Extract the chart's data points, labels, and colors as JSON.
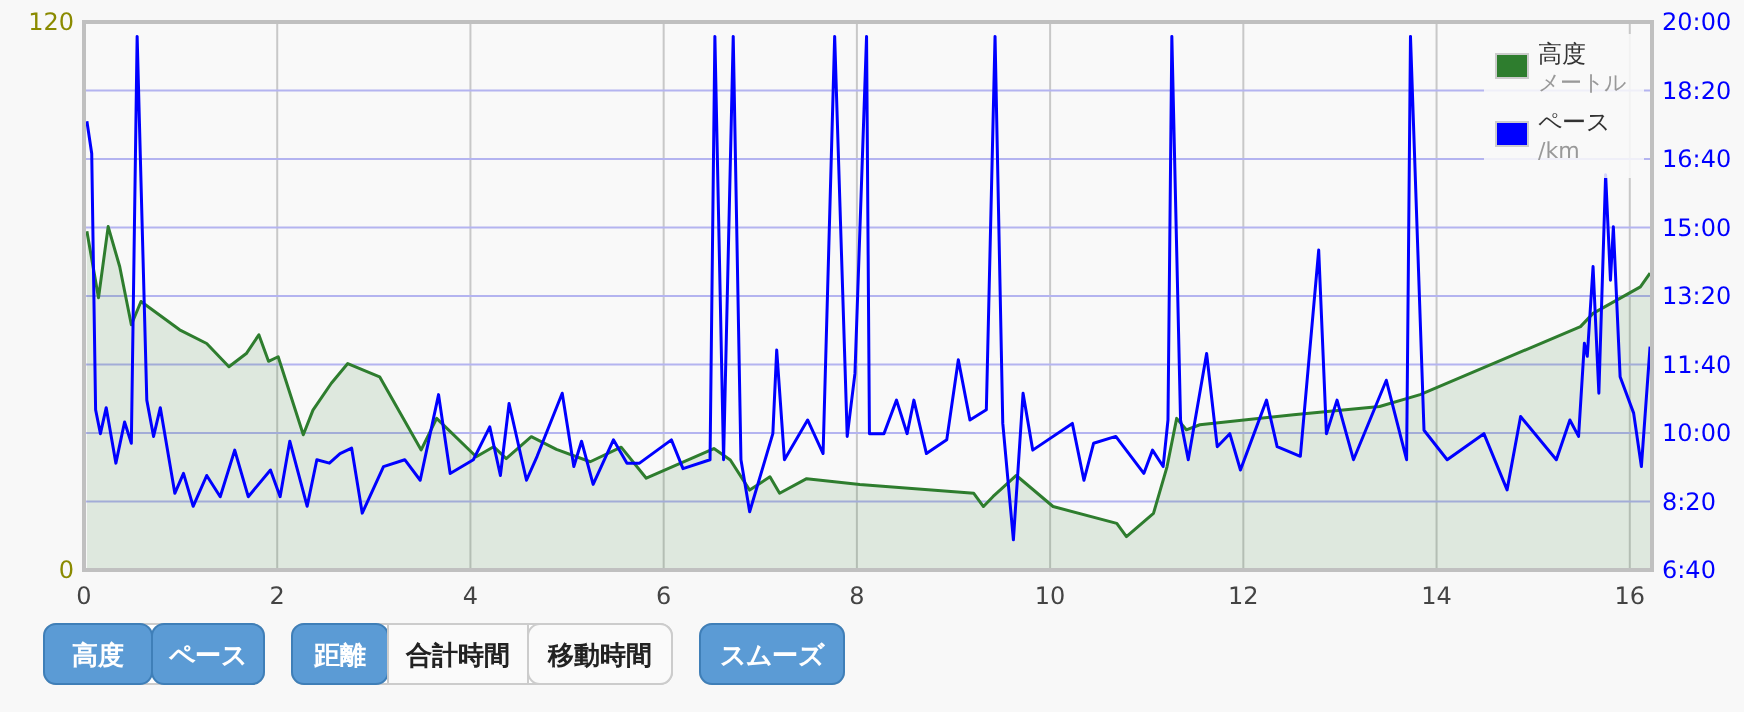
{
  "chart_data": {
    "type": "line",
    "xlim": [
      0,
      16.23
    ],
    "xticks": [
      0,
      2,
      4,
      6,
      8,
      10,
      12,
      14,
      16
    ],
    "ylim": [
      0,
      120
    ],
    "yticks": [
      0,
      120
    ],
    "y2lim": [
      400,
      1200
    ],
    "y2ticks": [
      {
        "value": 400,
        "label": "6:40"
      },
      {
        "value": 500,
        "label": "8:20"
      },
      {
        "value": 600,
        "label": "10:00"
      },
      {
        "value": 700,
        "label": "11:40"
      },
      {
        "value": 800,
        "label": "13:20"
      },
      {
        "value": 900,
        "label": "15:00"
      },
      {
        "value": 1000,
        "label": "16:40"
      },
      {
        "value": 1100,
        "label": "18:20"
      },
      {
        "value": 1200,
        "label": "20:00"
      }
    ],
    "grid": true,
    "legend": "top right",
    "annotations": [
      "高度",
      "ペース",
      "距離",
      "合計時間",
      "移動時間",
      "スムーズ",
      "メートル",
      "/km"
    ],
    "series": [
      {
        "name": "高度",
        "type": "area",
        "color": "#2e7d2e",
        "x": [
          0.03,
          0.15,
          0.25,
          0.37,
          0.49,
          0.59,
          0.99,
          1.27,
          1.5,
          1.68,
          1.81,
          1.91,
          2.01,
          2.27,
          2.37,
          2.56,
          2.73,
          3.06,
          3.49,
          3.65,
          4.06,
          4.24,
          4.37,
          4.63,
          4.89,
          5.24,
          5.56,
          5.82,
          6.52,
          6.69,
          6.89,
          7.1,
          7.2,
          7.48,
          8.03,
          9.21,
          9.31,
          9.41,
          9.65,
          10.03,
          10.69,
          10.79,
          11.07,
          11.21,
          11.31,
          11.41,
          11.55,
          12.52,
          13.41,
          13.83,
          15.49,
          15.62,
          16.11,
          16.21
        ],
        "values": [
          74.2,
          59.6,
          75.2,
          66.4,
          53.7,
          58.8,
          52.6,
          49.6,
          44.5,
          47.4,
          51.5,
          45.7,
          46.7,
          29.6,
          35,
          40.9,
          45.2,
          42.3,
          26.3,
          33.2,
          24.8,
          27,
          24.4,
          29.2,
          26.4,
          23.7,
          26.9,
          20.1,
          26.6,
          24.1,
          17.5,
          20.4,
          16.8,
          20,
          18.7,
          16.8,
          13.9,
          16.1,
          20.7,
          13.9,
          10.2,
          7.3,
          12.4,
          22.6,
          33.2,
          30.7,
          31.8,
          34,
          35.8,
          38.4,
          53.3,
          56.2,
          62,
          65
        ]
      },
      {
        "name": "ペース",
        "axis": "y2",
        "color": "#0000ff",
        "x": [
          0.03,
          0.08,
          0.12,
          0.17,
          0.23,
          0.33,
          0.42,
          0.49,
          0.55,
          0.65,
          0.72,
          0.79,
          0.94,
          1.03,
          1.13,
          1.27,
          1.41,
          1.56,
          1.7,
          1.93,
          2.03,
          2.13,
          2.31,
          2.41,
          2.54,
          2.65,
          2.77,
          2.88,
          3.1,
          3.32,
          3.48,
          3.67,
          3.79,
          4.03,
          4.2,
          4.31,
          4.4,
          4.58,
          4.69,
          4.95,
          5.07,
          5.15,
          5.27,
          5.48,
          5.62,
          5.75,
          6.08,
          6.2,
          6.48,
          6.53,
          6.62,
          6.72,
          6.8,
          6.89,
          7.13,
          7.17,
          7.25,
          7.49,
          7.65,
          7.77,
          7.9,
          7.98,
          8.1,
          8.13,
          8.28,
          8.41,
          8.52,
          8.59,
          8.72,
          8.93,
          9.05,
          9.17,
          9.34,
          9.43,
          9.51,
          9.62,
          9.72,
          9.82,
          10.23,
          10.35,
          10.45,
          10.68,
          10.97,
          11.06,
          11.17,
          11.22,
          11.26,
          11.35,
          11.43,
          11.62,
          11.73,
          11.86,
          11.97,
          12.24,
          12.35,
          12.59,
          12.78,
          12.86,
          12.97,
          13.14,
          13.48,
          13.69,
          13.73,
          13.87,
          14.11,
          14.49,
          14.73,
          14.87,
          15.24,
          15.38,
          15.47,
          15.53,
          15.56,
          15.62,
          15.68,
          15.75,
          15.8,
          15.83,
          15.9,
          16.04,
          16.12,
          16.21
        ],
        "values": [
          1055,
          1008,
          634,
          599,
          637,
          556,
          616,
          585,
          1179,
          648,
          595,
          637,
          512,
          541,
          493,
          538,
          507,
          575,
          507,
          546,
          507,
          588,
          493,
          561,
          556,
          570,
          578,
          483,
          551,
          561,
          531,
          656,
          541,
          561,
          609,
          538,
          643,
          531,
          566,
          658,
          551,
          588,
          525,
          590,
          556,
          556,
          590,
          548,
          561,
          1179,
          561,
          1179,
          561,
          485,
          599,
          721,
          561,
          619,
          570,
          1179,
          595,
          687,
          1179,
          599,
          599,
          648,
          599,
          648,
          570,
          590,
          707,
          619,
          634,
          1179,
          614,
          444,
          658,
          575,
          614,
          531,
          585,
          595,
          541,
          575,
          551,
          619,
          1179,
          619,
          561,
          716,
          580,
          599,
          546,
          648,
          580,
          566,
          867,
          599,
          648,
          561,
          677,
          561,
          1179,
          604,
          561,
          599,
          517,
          624,
          561,
          619,
          595,
          731,
          712,
          843,
          658,
          977,
          823,
          901,
          682,
          629,
          551,
          726
        ]
      }
    ]
  }
}
